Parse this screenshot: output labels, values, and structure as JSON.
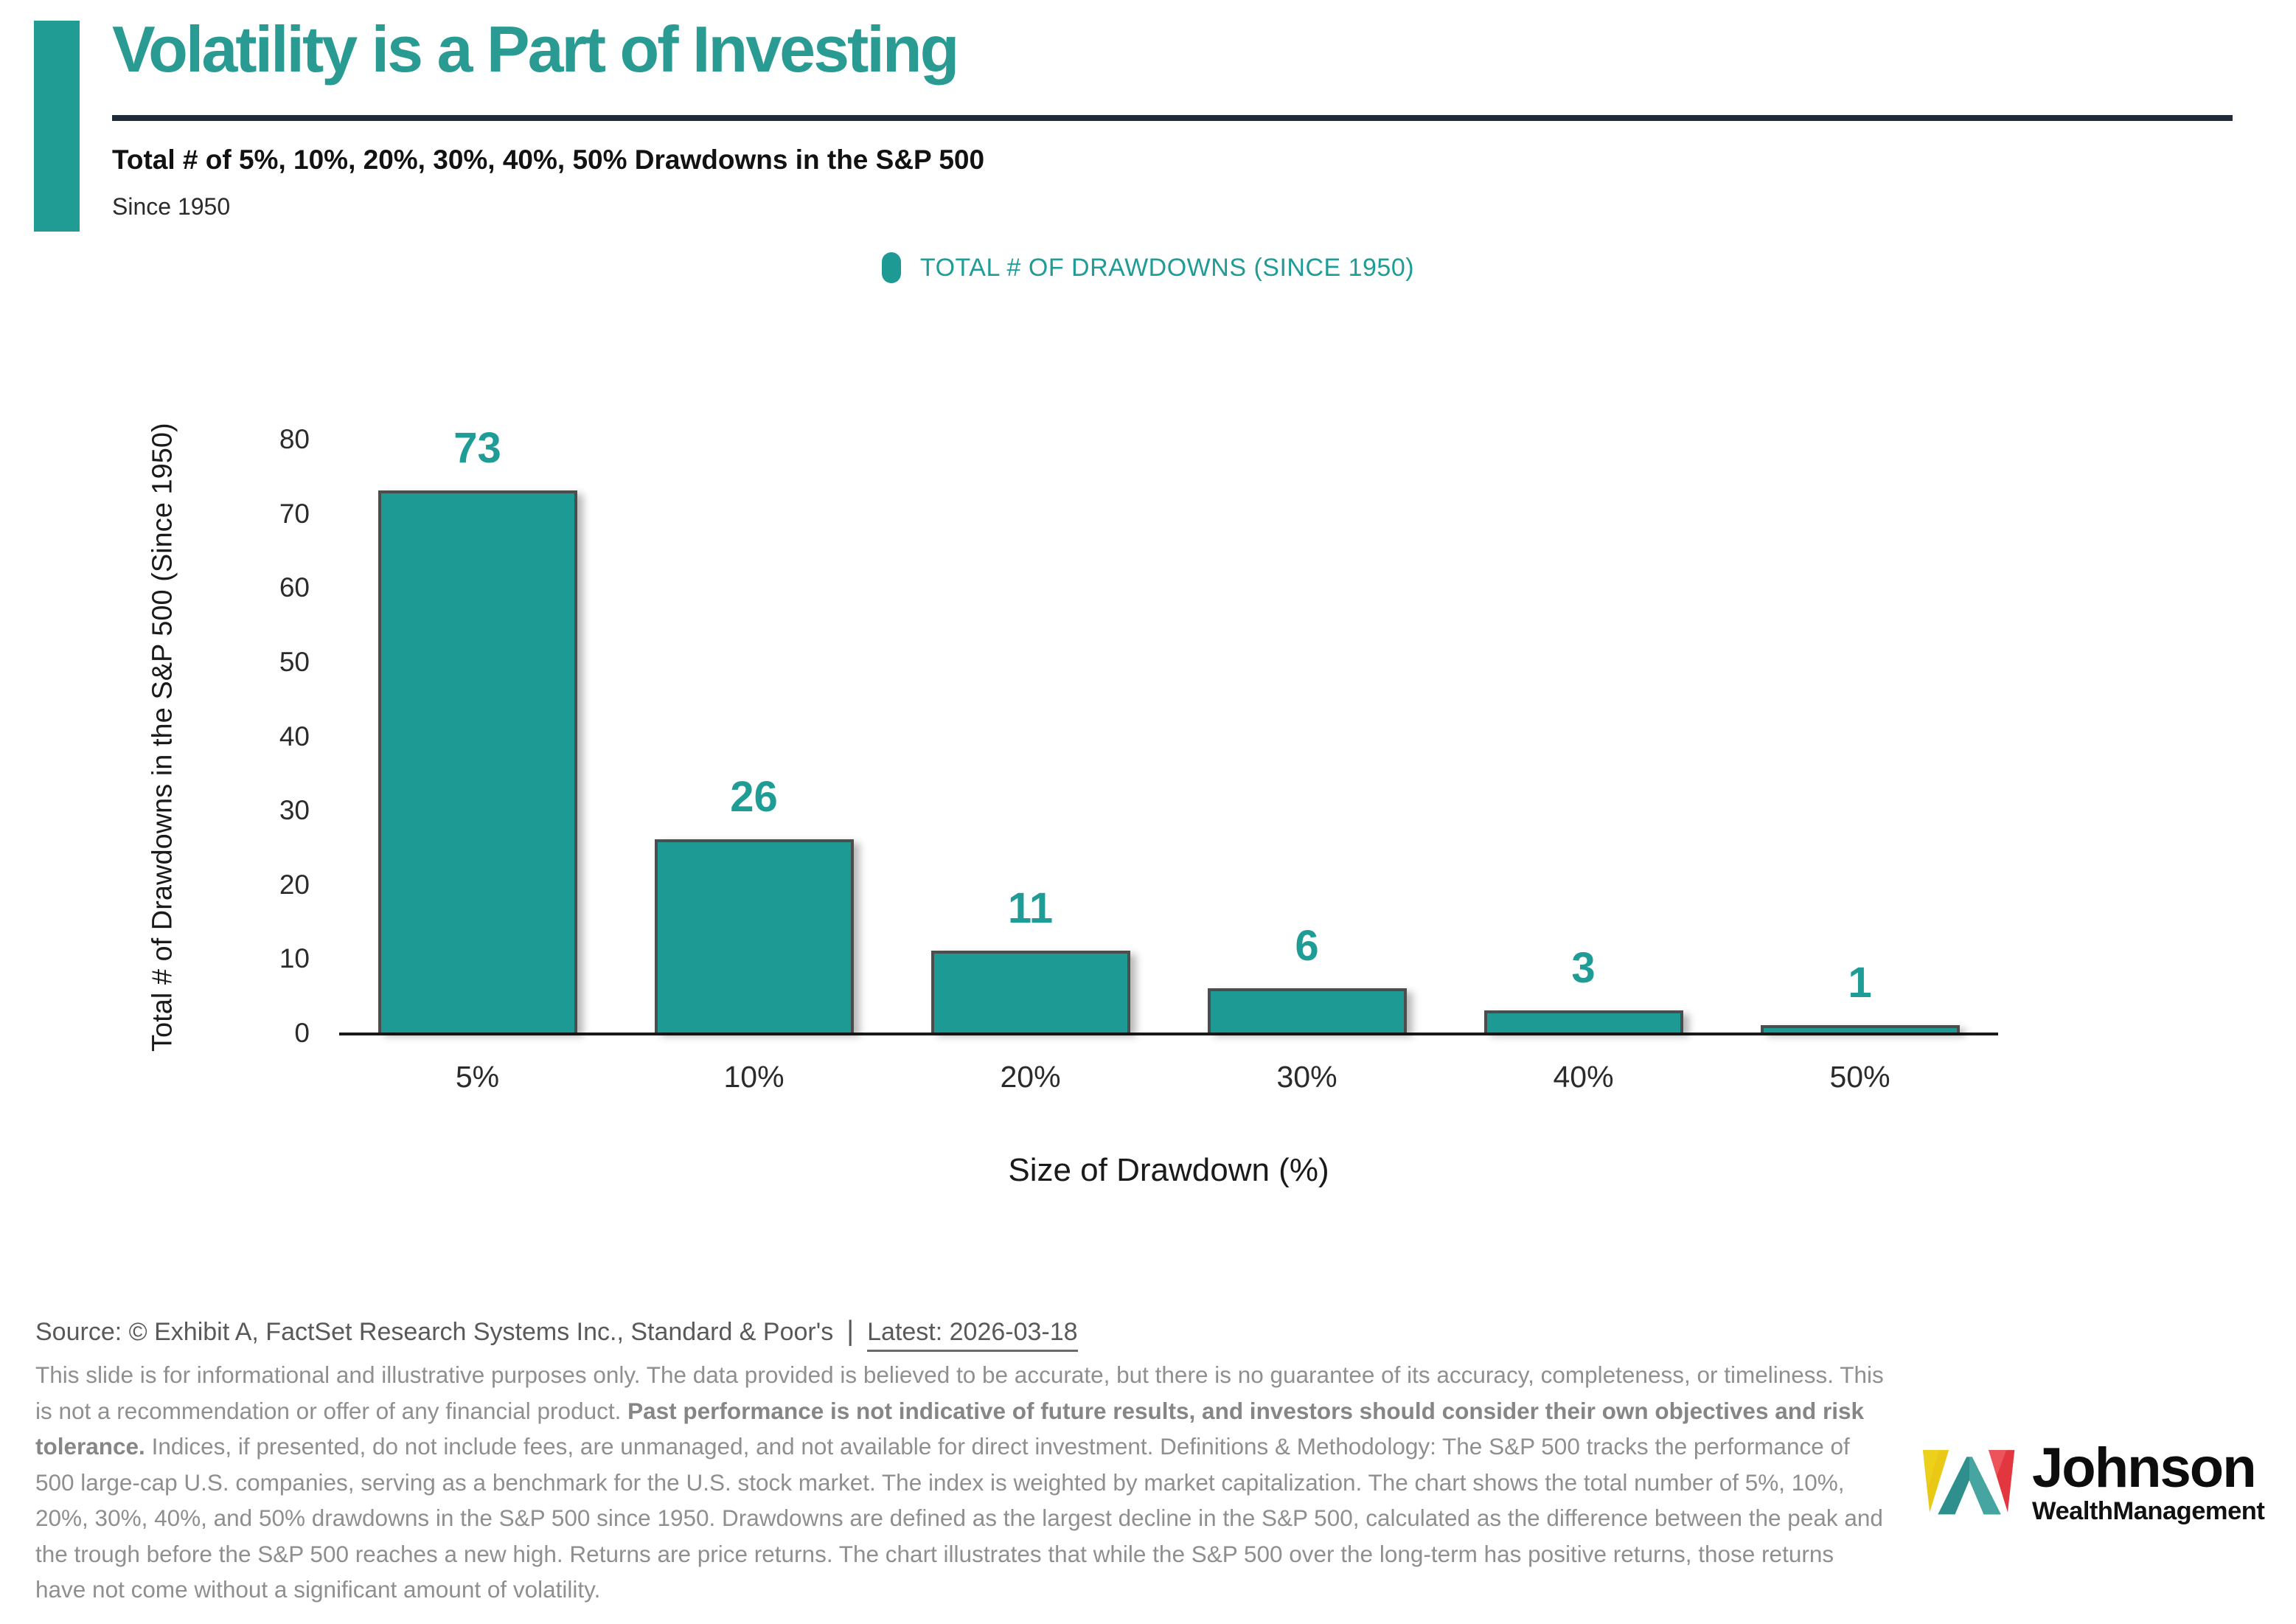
{
  "header": {
    "title": "Volatility is a Part of Investing",
    "subtitle": "Total # of 5%, 10%, 20%, 30%, 40%, 50% Drawdowns in the S&P 500",
    "period": "Since 1950"
  },
  "legend": {
    "label": "TOTAL # OF DRAWDOWNS (SINCE 1950)"
  },
  "chart_data": {
    "type": "bar",
    "title": "Total # of 5%, 10%, 20%, 30%, 40%, 50% Drawdowns in the S&P 500",
    "subtitle": "Since 1950",
    "categories": [
      "5%",
      "10%",
      "20%",
      "30%",
      "40%",
      "50%"
    ],
    "values": [
      73,
      26,
      11,
      6,
      3,
      1
    ],
    "xlabel": "Size of Drawdown (%)",
    "ylabel": "Total # of Drawdowns in the S&P 500 (Since 1950)",
    "ylim": [
      0,
      80
    ],
    "ytick_interval": 10,
    "yticks": [
      0,
      10,
      20,
      30,
      40,
      50,
      60,
      70,
      80
    ],
    "grid": false,
    "legend_entries": [
      "TOTAL # OF DRAWDOWNS (SINCE 1950)"
    ],
    "legend_position": "top-center",
    "bar_color": "#1E9A94",
    "bar_border_color": "#4D4D4D",
    "value_label_color": "#1F9C95"
  },
  "footer": {
    "source_prefix": "Source: © Exhibit A, FactSet Research Systems Inc., Standard & Poor's",
    "separator": "|",
    "latest": "Latest: 2026-03-18",
    "disclaimer_segments": [
      {
        "bold": false,
        "text": "This slide is for informational and illustrative purposes only. The data provided is believed to be accurate, but there is no guarantee of its accuracy, completeness, or timeliness. This is not a recommendation or offer of any financial product. "
      },
      {
        "bold": true,
        "text": "Past performance is not indicative of future results, and investors should consider their own objectives and risk tolerance."
      },
      {
        "bold": false,
        "text": " Indices, if presented, do not include fees, are unmanaged, and not available for direct investment. Definitions & Methodology: The S&P 500 tracks the performance of 500 large-cap U.S. companies, serving as a benchmark for the U.S. stock market. The index is weighted by market capitalization. The chart shows the total number of 5%, 10%, 20%, 30%, 40%, and 50% drawdowns in the S&P 500 since 1950. Drawdowns are defined as the largest decline in the S&P 500, calculated as the difference between the peak and the trough before the S&P 500 reaches a new high. Returns are price returns. The chart illustrates that while the S&P 500 over the long-term has positive returns, those returns have not come without a significant amount of volatility."
      }
    ]
  },
  "logo": {
    "name": "Johnson",
    "sub": "WealthManagement"
  },
  "colors": {
    "accent": "#219C94",
    "title_teal": "#2A9B92",
    "bar_fill": "#1E9A94",
    "bar_border": "#4D4D4D",
    "rule_navy": "#222B3A",
    "axis_black": "#1A1A1A",
    "source_gray": "#595959",
    "disclaimer_gray": "#8F8F8F",
    "logo_yellow": "#E9C916",
    "logo_red": "#E33740",
    "logo_teal_dark": "#2E8F8C",
    "logo_teal_light": "#47A5A1"
  }
}
